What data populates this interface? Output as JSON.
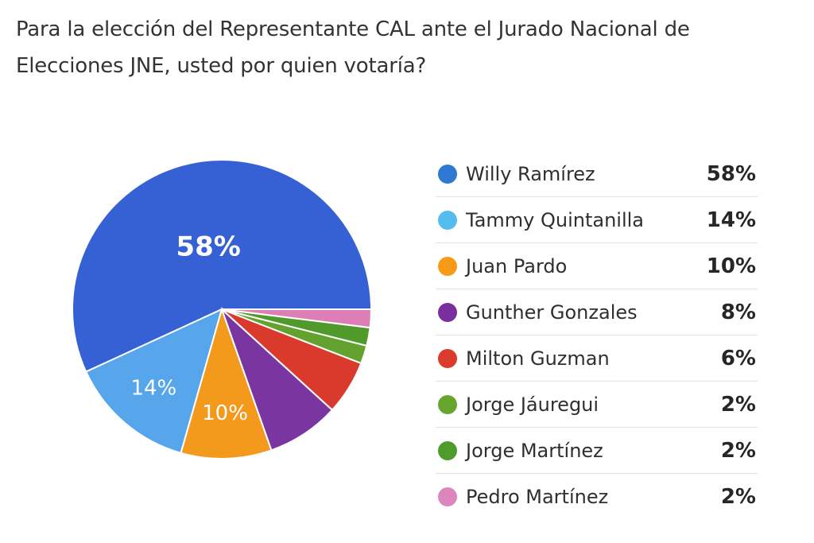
{
  "question": "Para la elección del Representante CAL ante el Jurado Nacional de Elecciones JNE, usted por quien votaría?",
  "chart_data": {
    "type": "pie",
    "title": "",
    "slices": [
      {
        "name": "Willy Ramírez",
        "value": 58,
        "label": "58%",
        "color": "#3661d4",
        "show_label": true
      },
      {
        "name": "Tammy Quintanilla",
        "value": 14,
        "label": "14%",
        "color": "#57a6ec",
        "show_label": true
      },
      {
        "name": "Juan Pardo",
        "value": 10,
        "label": "10%",
        "color": "#f39a1c",
        "show_label": true
      },
      {
        "name": "Gunther Gonzales",
        "value": 8,
        "label": "8%",
        "color": "#7b35a0",
        "show_label": false
      },
      {
        "name": "Milton Guzman",
        "value": 6,
        "label": "6%",
        "color": "#d93a2b",
        "show_label": false
      },
      {
        "name": "Jorge Jáuregui",
        "value": 2,
        "label": "2%",
        "color": "#63a22e",
        "show_label": false
      },
      {
        "name": "Jorge Martínez",
        "value": 2,
        "label": "2%",
        "color": "#4f9a2a",
        "show_label": false
      },
      {
        "name": "Pedro Martínez",
        "value": 2,
        "label": "2%",
        "color": "#dd7fb6",
        "show_label": false
      }
    ],
    "legend_position": "right"
  },
  "legend": {
    "colors": [
      "#2f78d2",
      "#56bbee",
      "#f79a17",
      "#7a2f9e",
      "#dc3a2a",
      "#68a52d",
      "#4e9c2c",
      "#dd85bd"
    ],
    "items": [
      {
        "name": "Willy Ramírez",
        "value": "58%"
      },
      {
        "name": "Tammy Quintanilla",
        "value": "14%"
      },
      {
        "name": "Juan Pardo",
        "value": "10%"
      },
      {
        "name": "Gunther Gonzales",
        "value": "8%"
      },
      {
        "name": "Milton Guzman",
        "value": "6%"
      },
      {
        "name": "Jorge Jáuregui",
        "value": "2%"
      },
      {
        "name": "Jorge Martínez",
        "value": "2%"
      },
      {
        "name": "Pedro Martínez",
        "value": "2%"
      }
    ]
  }
}
